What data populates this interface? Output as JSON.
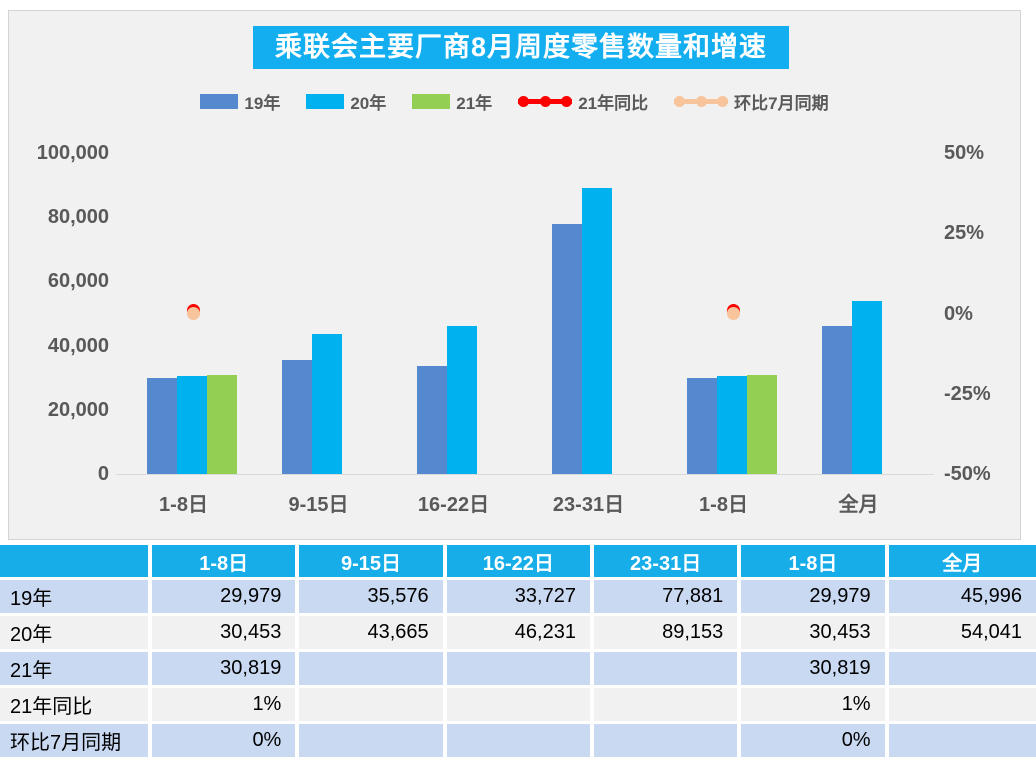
{
  "title": "乘联会主要厂商8月周度零售数量和增速",
  "legend": [
    {
      "label": "19年",
      "type": "swatch",
      "color": "#5589CF"
    },
    {
      "label": "20年",
      "type": "swatch",
      "color": "#00B1EF"
    },
    {
      "label": "21年",
      "type": "swatch",
      "color": "#93CF52"
    },
    {
      "label": "21年同比",
      "type": "line",
      "color": "#FE0000"
    },
    {
      "label": "环比7月同期",
      "type": "line",
      "color": "#F7C49C"
    }
  ],
  "chart_data": {
    "type": "bar",
    "title": "乘联会主要厂商8月周度零售数量和增速",
    "categories": [
      "1-8日",
      "9-15日",
      "16-22日",
      "23-31日",
      "1-8日",
      "全月"
    ],
    "series": [
      {
        "name": "19年",
        "type": "bar",
        "axis": "left",
        "color": "#5589CF",
        "values": [
          29979,
          35576,
          33727,
          77881,
          29979,
          45996
        ]
      },
      {
        "name": "20年",
        "type": "bar",
        "axis": "left",
        "color": "#00B1EF",
        "values": [
          30453,
          43665,
          46231,
          89153,
          30453,
          54041
        ]
      },
      {
        "name": "21年",
        "type": "bar",
        "axis": "left",
        "color": "#93CF52",
        "values": [
          30819,
          null,
          null,
          null,
          30819,
          null
        ]
      },
      {
        "name": "21年同比",
        "type": "line",
        "axis": "right",
        "color": "#FE0000",
        "values": [
          0.01,
          null,
          null,
          null,
          0.01,
          null
        ]
      },
      {
        "name": "环比7月同期",
        "type": "line",
        "axis": "right",
        "color": "#F7C49C",
        "values": [
          0.0,
          null,
          null,
          null,
          0.0,
          null
        ]
      }
    ],
    "left_axis": {
      "ticks": [
        "100,000",
        "80,000",
        "60,000",
        "40,000",
        "20,000",
        "0"
      ],
      "min": 0,
      "max": 100000
    },
    "right_axis": {
      "ticks": [
        "50%",
        "25%",
        "0%",
        "-25%",
        "-50%"
      ],
      "min": -0.5,
      "max": 0.5
    },
    "grid": false,
    "legend_position": "top"
  },
  "table": {
    "header": [
      "",
      "1-8日",
      "9-15日",
      "16-22日",
      "23-31日",
      "1-8日",
      "全月"
    ],
    "rows": [
      {
        "label": "19年",
        "values": [
          "29,979",
          "35,576",
          "33,727",
          "77,881",
          "29,979",
          "45,996"
        ]
      },
      {
        "label": "20年",
        "values": [
          "30,453",
          "43,665",
          "46,231",
          "89,153",
          "30,453",
          "54,041"
        ]
      },
      {
        "label": "21年",
        "values": [
          "30,819",
          "",
          "",
          "",
          "30,819",
          ""
        ]
      },
      {
        "label": "21年同比",
        "values": [
          "1%",
          "",
          "",
          "",
          "1%",
          ""
        ]
      },
      {
        "label": "环比7月同期",
        "values": [
          "0%",
          "",
          "",
          "",
          "0%",
          ""
        ]
      }
    ]
  },
  "colors": {
    "title_bg": "#12AEEF",
    "table_header_bg": "#16ADE9",
    "row_blue": "#C9D9F2",
    "row_gray": "#F1F1F1",
    "axis_text": "#595959",
    "chart_bg": "#F1F1F1"
  }
}
